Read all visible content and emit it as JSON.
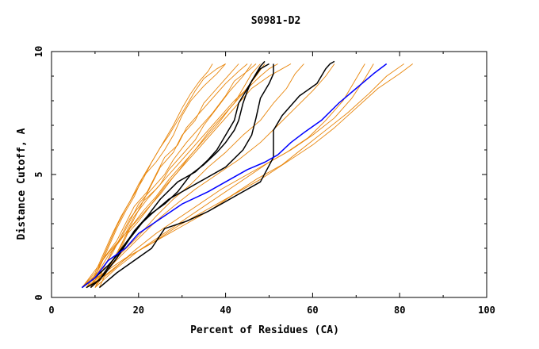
{
  "chart_data": {
    "type": "line",
    "title": "S0981-D2",
    "xlabel": "Percent of Residues (CA)",
    "ylabel": "Distance Cutoff, A",
    "xlim": [
      0,
      100
    ],
    "ylim": [
      0,
      10
    ],
    "xticks": [
      "0",
      "20",
      "40",
      "60",
      "80",
      "100"
    ],
    "yticks": [
      "0",
      "5",
      "10"
    ],
    "grid": false,
    "colors": {
      "highlight": "#0000ff",
      "reference": "#000000",
      "other": "#e8850a"
    },
    "series": [
      {
        "color": "#0000ff",
        "x": [
          7,
          10,
          13,
          17,
          20,
          25,
          30,
          36,
          41,
          45,
          49,
          52,
          55,
          58,
          62,
          66,
          70,
          74,
          77
        ],
        "y": [
          0.4,
          0.8,
          1.5,
          2.0,
          2.6,
          3.2,
          3.8,
          4.3,
          4.8,
          5.2,
          5.5,
          5.8,
          6.3,
          6.7,
          7.2,
          7.9,
          8.5,
          9.1,
          9.5
        ]
      },
      {
        "color": "#000000",
        "x": [
          11,
          15,
          19,
          23,
          26,
          31,
          36,
          42,
          48,
          51,
          51,
          53,
          57,
          61,
          63,
          64,
          65
        ],
        "y": [
          0.4,
          1.0,
          1.5,
          2.0,
          2.8,
          3.1,
          3.5,
          4.1,
          4.7,
          5.7,
          6.8,
          7.4,
          8.2,
          8.7,
          9.3,
          9.5,
          9.6
        ]
      },
      {
        "color": "#000000",
        "x": [
          8,
          11,
          14,
          17,
          20,
          23,
          27,
          31,
          36,
          40,
          44,
          46,
          47,
          48,
          50,
          51,
          51
        ],
        "y": [
          0.4,
          0.7,
          1.5,
          2.2,
          2.9,
          3.4,
          4.0,
          4.4,
          4.9,
          5.3,
          6.0,
          6.6,
          7.3,
          8.1,
          8.7,
          9.1,
          9.5
        ]
      },
      {
        "color": "#000000",
        "x": [
          7,
          10,
          13,
          16,
          19,
          22,
          25,
          29,
          33,
          36,
          38,
          40,
          42,
          43,
          45,
          46,
          48,
          50
        ],
        "y": [
          0.4,
          0.8,
          1.3,
          1.9,
          2.7,
          3.3,
          4.0,
          4.7,
          5.1,
          5.6,
          6.0,
          6.6,
          7.2,
          7.9,
          8.5,
          8.8,
          9.3,
          9.5
        ]
      },
      {
        "color": "#000000",
        "x": [
          9,
          12,
          15,
          18,
          22,
          26,
          29,
          32,
          35,
          38,
          40,
          42,
          43,
          44,
          45,
          46,
          47,
          48,
          49
        ],
        "y": [
          0.4,
          0.9,
          1.6,
          2.4,
          3.3,
          3.8,
          4.3,
          5.0,
          5.4,
          5.9,
          6.3,
          6.8,
          7.2,
          7.9,
          8.4,
          8.8,
          9.1,
          9.4,
          9.6
        ]
      },
      {
        "color": "#e8850a",
        "x": [
          7,
          10,
          12,
          14,
          16,
          18,
          20,
          22,
          24,
          26,
          28,
          30,
          32,
          34,
          36,
          37
        ],
        "y": [
          0.4,
          1.0,
          1.8,
          2.6,
          3.3,
          3.9,
          4.6,
          5.2,
          5.8,
          6.4,
          7.0,
          7.7,
          8.3,
          8.8,
          9.2,
          9.5
        ]
      },
      {
        "color": "#e8850a",
        "x": [
          8,
          11,
          13,
          15,
          17,
          19,
          21,
          24,
          26,
          28,
          30,
          32,
          35,
          38,
          40
        ],
        "y": [
          0.4,
          1.2,
          2.0,
          2.8,
          3.5,
          4.1,
          4.9,
          5.5,
          6.0,
          6.6,
          7.4,
          8.0,
          8.6,
          9.1,
          9.5
        ]
      },
      {
        "color": "#e8850a",
        "x": [
          9,
          11,
          14,
          16,
          18,
          21,
          23,
          25,
          28,
          30,
          33,
          35,
          38,
          41,
          43
        ],
        "y": [
          0.4,
          1.0,
          1.8,
          2.5,
          3.2,
          3.9,
          4.6,
          5.3,
          5.9,
          6.6,
          7.2,
          7.9,
          8.5,
          9.1,
          9.5
        ]
      },
      {
        "color": "#e8850a",
        "x": [
          7,
          10,
          12,
          15,
          17,
          19,
          22,
          24,
          26,
          29,
          31,
          34,
          37,
          40,
          43,
          45
        ],
        "y": [
          0.4,
          0.9,
          1.6,
          2.3,
          3.0,
          3.7,
          4.3,
          5.0,
          5.7,
          6.2,
          6.9,
          7.5,
          8.1,
          8.7,
          9.2,
          9.5
        ]
      },
      {
        "color": "#e8850a",
        "x": [
          10,
          12,
          14,
          17,
          19,
          22,
          25,
          27,
          30,
          33,
          35,
          38,
          41,
          44,
          46
        ],
        "y": [
          0.4,
          1.2,
          1.9,
          2.6,
          3.3,
          4.0,
          4.6,
          5.2,
          5.8,
          6.4,
          7.0,
          7.7,
          8.4,
          9.0,
          9.5
        ]
      },
      {
        "color": "#e8850a",
        "x": [
          8,
          11,
          13,
          16,
          18,
          20,
          23,
          26,
          28,
          31,
          34,
          37,
          40,
          42,
          45,
          47
        ],
        "y": [
          0.4,
          1.1,
          1.7,
          2.4,
          3.1,
          3.8,
          4.4,
          5.0,
          5.6,
          6.3,
          6.9,
          7.5,
          8.2,
          8.8,
          9.2,
          9.5
        ]
      },
      {
        "color": "#e8850a",
        "x": [
          9,
          12,
          15,
          17,
          20,
          23,
          26,
          29,
          32,
          35,
          38,
          41,
          44,
          47,
          49
        ],
        "y": [
          0.4,
          1.0,
          1.7,
          2.5,
          3.1,
          3.8,
          4.5,
          5.1,
          5.8,
          6.4,
          7.0,
          7.7,
          8.3,
          9.0,
          9.5
        ]
      },
      {
        "color": "#e8850a",
        "x": [
          11,
          13,
          15,
          17,
          19,
          21,
          24,
          27,
          30,
          33,
          36,
          39,
          42,
          45,
          48,
          50,
          52
        ],
        "y": [
          0.4,
          1.2,
          1.8,
          2.5,
          3.2,
          3.9,
          4.4,
          5.0,
          5.6,
          6.2,
          6.8,
          7.4,
          8.0,
          8.5,
          9.0,
          9.3,
          9.5
        ]
      },
      {
        "color": "#e8850a",
        "x": [
          7,
          10,
          13,
          16,
          19,
          22,
          25,
          28,
          31,
          34,
          37,
          40,
          43,
          46,
          50,
          53,
          55
        ],
        "y": [
          0.4,
          1.1,
          1.8,
          2.4,
          3.0,
          3.6,
          4.2,
          4.9,
          5.5,
          6.1,
          6.7,
          7.3,
          7.9,
          8.5,
          9.0,
          9.3,
          9.5
        ]
      },
      {
        "color": "#e8850a",
        "x": [
          8,
          12,
          16,
          20,
          24,
          28,
          32,
          36,
          40,
          44,
          48,
          51,
          54,
          56,
          58
        ],
        "y": [
          0.4,
          1.0,
          1.8,
          2.5,
          3.3,
          4.0,
          4.6,
          5.3,
          5.9,
          6.6,
          7.2,
          7.9,
          8.5,
          9.1,
          9.5
        ]
      },
      {
        "color": "#e8850a",
        "x": [
          9,
          14,
          19,
          24,
          29,
          34,
          39,
          44,
          49,
          54,
          59,
          63,
          67,
          70,
          72
        ],
        "y": [
          0.4,
          1.1,
          1.9,
          2.6,
          3.2,
          3.8,
          4.4,
          4.9,
          5.4,
          5.9,
          6.5,
          7.2,
          8.0,
          8.9,
          9.5
        ]
      },
      {
        "color": "#e8850a",
        "x": [
          10,
          15,
          20,
          25,
          30,
          35,
          40,
          45,
          50,
          55,
          60,
          65,
          69,
          72,
          74
        ],
        "y": [
          0.4,
          1.2,
          1.9,
          2.5,
          3.1,
          3.7,
          4.3,
          4.9,
          5.5,
          6.0,
          6.6,
          7.3,
          8.1,
          8.9,
          9.5
        ]
      },
      {
        "color": "#e8850a",
        "x": [
          7,
          12,
          17,
          23,
          29,
          35,
          41,
          47,
          53,
          58,
          63,
          68,
          73,
          77,
          81
        ],
        "y": [
          0.4,
          1.0,
          1.6,
          2.2,
          2.9,
          3.5,
          4.1,
          4.8,
          5.4,
          6.1,
          6.8,
          7.5,
          8.3,
          9.0,
          9.5
        ]
      },
      {
        "color": "#e8850a",
        "x": [
          8,
          13,
          18,
          24,
          30,
          36,
          42,
          48,
          54,
          60,
          65,
          70,
          75,
          80,
          83
        ],
        "y": [
          0.4,
          1.0,
          1.7,
          2.3,
          2.9,
          3.5,
          4.2,
          4.8,
          5.5,
          6.2,
          6.9,
          7.7,
          8.5,
          9.1,
          9.5
        ]
      },
      {
        "color": "#e8850a",
        "x": [
          9,
          11,
          13,
          15,
          17,
          19,
          21,
          23,
          25,
          27,
          29,
          31,
          33,
          35,
          38,
          40
        ],
        "y": [
          0.4,
          1.3,
          2.1,
          2.9,
          3.6,
          4.2,
          4.8,
          5.5,
          6.1,
          6.6,
          7.2,
          7.8,
          8.4,
          8.9,
          9.3,
          9.5
        ]
      },
      {
        "color": "#e8850a",
        "x": [
          10,
          13,
          16,
          18,
          21,
          24,
          27,
          30,
          33,
          36,
          39,
          42,
          44,
          46,
          48
        ],
        "y": [
          0.4,
          1.2,
          2.0,
          2.8,
          3.5,
          4.1,
          4.8,
          5.4,
          6.0,
          6.7,
          7.3,
          7.9,
          8.5,
          9.1,
          9.5
        ]
      },
      {
        "color": "#e8850a",
        "x": [
          8,
          12,
          16,
          20,
          24,
          28,
          33,
          38,
          43,
          48,
          52,
          56,
          60,
          63,
          65
        ],
        "y": [
          0.4,
          1.0,
          1.7,
          2.4,
          3.1,
          3.7,
          4.4,
          5.0,
          5.6,
          6.3,
          7.0,
          7.7,
          8.4,
          9.0,
          9.5
        ]
      }
    ]
  }
}
